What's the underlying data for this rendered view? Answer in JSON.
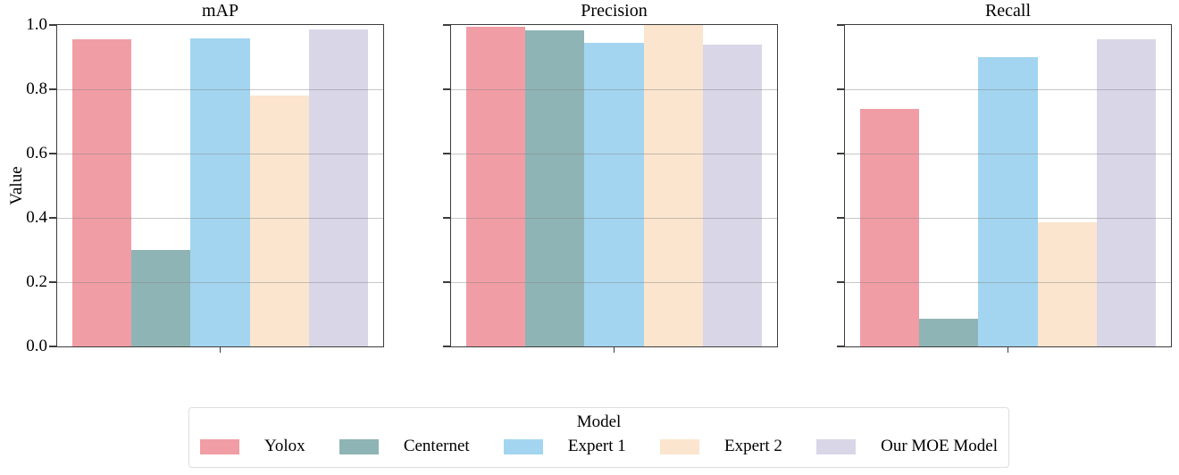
{
  "chart_data": {
    "type": "bar",
    "categories": [
      "Yolox",
      "Centernet",
      "Expert 1",
      "Expert 2",
      "Our MOE Model"
    ],
    "colors": [
      "#F19DA6",
      "#8FB4B5",
      "#A3D5F0",
      "#FBE5CE",
      "#D9D6E8"
    ],
    "panels": [
      {
        "title": "mAP",
        "values": [
          0.955,
          0.3,
          0.957,
          0.78,
          0.985
        ]
      },
      {
        "title": "Precision",
        "values": [
          0.995,
          0.982,
          0.945,
          1.0,
          0.94
        ]
      },
      {
        "title": "Recall",
        "values": [
          0.74,
          0.085,
          0.9,
          0.385,
          0.955
        ]
      }
    ],
    "ylabel": "Value",
    "xlabel": "",
    "ylim": [
      0.0,
      1.0
    ],
    "ytick_labels": [
      "0.0",
      "0.2",
      "0.4",
      "0.6",
      "0.8",
      "1.0"
    ],
    "grid": true,
    "grid_color": "#cbcbcb",
    "axis_color": "#3d3d3d",
    "background_color": "#ffffff",
    "legend": {
      "title": "Model",
      "position": "bottom"
    }
  }
}
